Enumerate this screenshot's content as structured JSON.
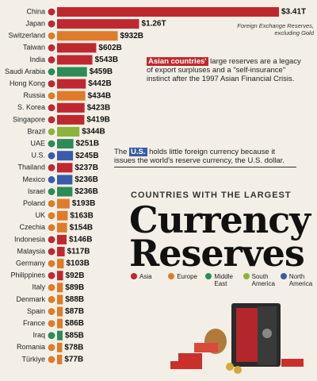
{
  "chart_data": {
    "type": "bar",
    "orientation": "horizontal",
    "subtitle": "COUNTRIES WITH THE LARGEST",
    "title": [
      "Currency",
      "Reserves"
    ],
    "note": "Foreign Exchange Reserves, excluding Gold",
    "annotations": [
      {
        "highlight": "Asian countries'",
        "text": "large reserves are a legacy of export surpluses and a \"self-insurance\" instinct after the 1997 Asian Financial Crisis."
      },
      {
        "prefix": "The",
        "highlight": "U.S.",
        "text": "holds little foreign currency because it issues the world's reserve currency, the U.S. dollar."
      }
    ],
    "categories": [
      "China",
      "Japan",
      "Switzerland",
      "Taiwan",
      "India",
      "Saudi Arabia",
      "Hong Kong",
      "Russia",
      "S. Korea",
      "Singapore",
      "Brazil",
      "UAE",
      "U.S.",
      "Thailand",
      "Mexico",
      "Israel",
      "Poland",
      "UK",
      "Czechia",
      "Indonesia",
      "Malaysia",
      "Germany",
      "Philippines",
      "Italy",
      "Denmark",
      "Spain",
      "France",
      "Iraq",
      "Romania",
      "Türkiye"
    ],
    "values": [
      3410,
      1260,
      932,
      602,
      543,
      459,
      442,
      434,
      423,
      419,
      344,
      251,
      245,
      237,
      236,
      236,
      193,
      163,
      154,
      146,
      117,
      103,
      92,
      89,
      88,
      87,
      86,
      85,
      78,
      77
    ],
    "value_labels": [
      "$3.41T",
      "$1.26T",
      "$932B",
      "$602B",
      "$543B",
      "$459B",
      "$442B",
      "$434B",
      "$423B",
      "$419B",
      "$344B",
      "$251B",
      "$245B",
      "$237B",
      "$236B",
      "$236B",
      "$193B",
      "$163B",
      "$154B",
      "$146B",
      "$117B",
      "$103B",
      "$92B",
      "$89B",
      "$88B",
      "$87B",
      "$86B",
      "$85B",
      "$78B",
      "$77B"
    ],
    "colors": [
      "#c0282f",
      "#c0282f",
      "#e07b2a",
      "#c0282f",
      "#c0282f",
      "#2e8b57",
      "#c0282f",
      "#e07b2a",
      "#c0282f",
      "#c0282f",
      "#8db33a",
      "#2e8b57",
      "#3a5ba8",
      "#c0282f",
      "#3a5ba8",
      "#2e8b57",
      "#e07b2a",
      "#e07b2a",
      "#e07b2a",
      "#c0282f",
      "#c0282f",
      "#e07b2a",
      "#c0282f",
      "#e07b2a",
      "#e07b2a",
      "#e07b2a",
      "#e07b2a",
      "#2e8b57",
      "#e07b2a",
      "#e07b2a"
    ],
    "legend": [
      {
        "name": "Asia",
        "color": "#c0282f"
      },
      {
        "name": "Europe",
        "color": "#e07b2a"
      },
      {
        "name": "Middle East",
        "color": "#2e8b57"
      },
      {
        "name": "South America",
        "color": "#8db33a"
      },
      {
        "name": "North America",
        "color": "#3a5ba8"
      }
    ]
  }
}
